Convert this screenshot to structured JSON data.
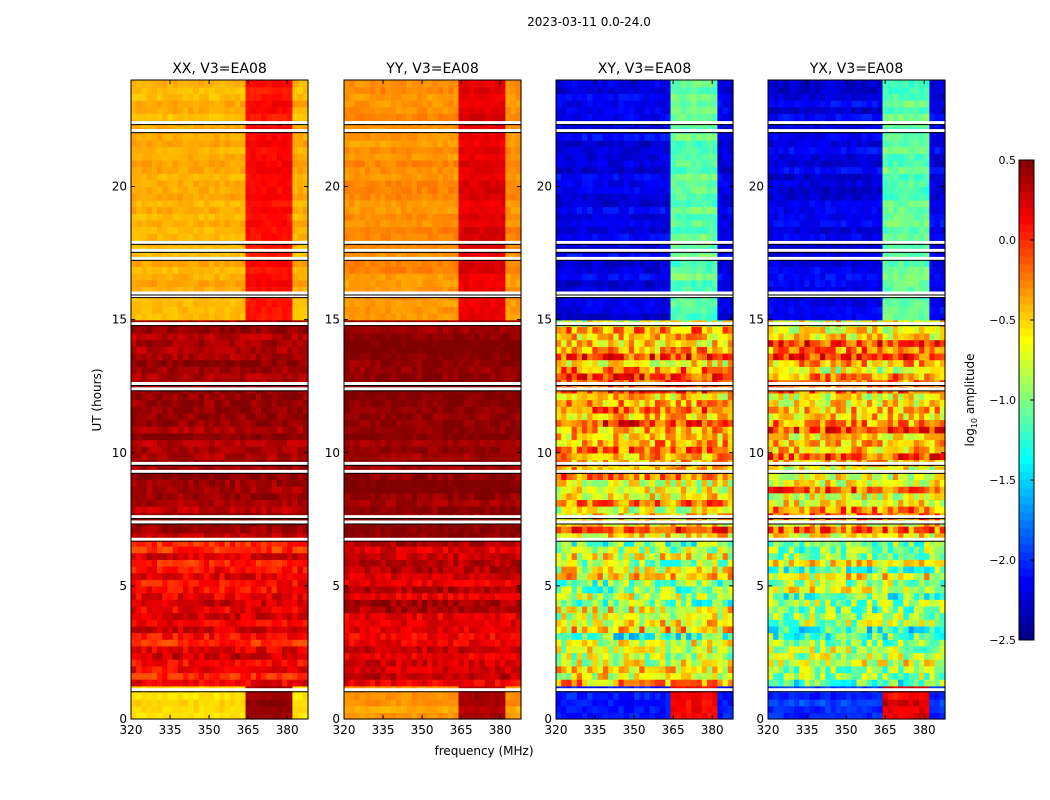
{
  "chart_data": {
    "type": "heatmap",
    "title": "2023-03-11 0.0-24.0",
    "xlabel": "frequency (MHz)",
    "ylabel": "UT (hours)",
    "xlim": [
      320,
      388
    ],
    "ylim": [
      0,
      24
    ],
    "xticks": [
      320,
      335,
      350,
      365,
      380
    ],
    "yticks": [
      0,
      5,
      10,
      15,
      20
    ],
    "colorbar": {
      "label": "log10 amplitude",
      "label_main": "log",
      "label_sub": "10",
      "label_rest": " amplitude",
      "colormap": "jet",
      "range": [
        -2.5,
        0.5
      ],
      "ticks": [
        "0.5",
        "0.0",
        "−0.5",
        "−1.0",
        "−1.5",
        "−2.0",
        "−2.5"
      ]
    },
    "hot_freq_range": [
      363,
      382
    ],
    "missing_times": [
      1.1,
      6.75,
      7.4,
      7.6,
      9.3,
      9.6,
      12.4,
      12.6,
      14.85,
      15.9,
      16.0,
      17.3,
      17.6,
      17.9,
      22.1,
      22.4
    ],
    "panels": [
      {
        "title": "XX, V3=EA08",
        "bands": [
          {
            "t": [
              0,
              1.1
            ],
            "value": -0.5,
            "hot_value": 0.45,
            "spread": 0.1
          },
          {
            "t": [
              1.1,
              6.7
            ],
            "value": 0.15,
            "hot_value": 0.15,
            "spread": 0.3
          },
          {
            "t": [
              6.7,
              14.8
            ],
            "value": 0.4,
            "hot_value": 0.4,
            "spread": 0.2
          },
          {
            "t": [
              14.8,
              24
            ],
            "value": -0.4,
            "hot_value": 0.1,
            "spread": 0.1
          }
        ]
      },
      {
        "title": "YY, V3=EA08",
        "bands": [
          {
            "t": [
              0,
              1.1
            ],
            "value": -0.35,
            "hot_value": 0.35,
            "spread": 0.1
          },
          {
            "t": [
              1.1,
              6.7
            ],
            "value": 0.25,
            "hot_value": 0.25,
            "spread": 0.25
          },
          {
            "t": [
              6.7,
              14.8
            ],
            "value": 0.45,
            "hot_value": 0.45,
            "spread": 0.15
          },
          {
            "t": [
              14.8,
              24
            ],
            "value": -0.3,
            "hot_value": 0.2,
            "spread": 0.1
          }
        ]
      },
      {
        "title": "XY, V3=EA08",
        "bands": [
          {
            "t": [
              0,
              1.1
            ],
            "value": -2.0,
            "hot_value": 0.2,
            "spread": 0.2
          },
          {
            "t": [
              1.1,
              6.7
            ],
            "value": -0.8,
            "hot_value": -0.8,
            "spread": 0.9
          },
          {
            "t": [
              6.7,
              14.8
            ],
            "value": -0.4,
            "hot_value": -0.4,
            "spread": 0.8
          },
          {
            "t": [
              14.8,
              24
            ],
            "value": -2.2,
            "hot_value": -1.1,
            "spread": 0.2
          }
        ]
      },
      {
        "title": "YX, V3=EA08",
        "bands": [
          {
            "t": [
              0,
              1.1
            ],
            "value": -2.0,
            "hot_value": 0.2,
            "spread": 0.2
          },
          {
            "t": [
              1.1,
              6.7
            ],
            "value": -0.8,
            "hot_value": -0.8,
            "spread": 0.9
          },
          {
            "t": [
              6.7,
              14.8
            ],
            "value": -0.4,
            "hot_value": -0.4,
            "spread": 0.8
          },
          {
            "t": [
              14.8,
              24
            ],
            "value": -2.2,
            "hot_value": -1.1,
            "spread": 0.2
          }
        ]
      }
    ]
  }
}
